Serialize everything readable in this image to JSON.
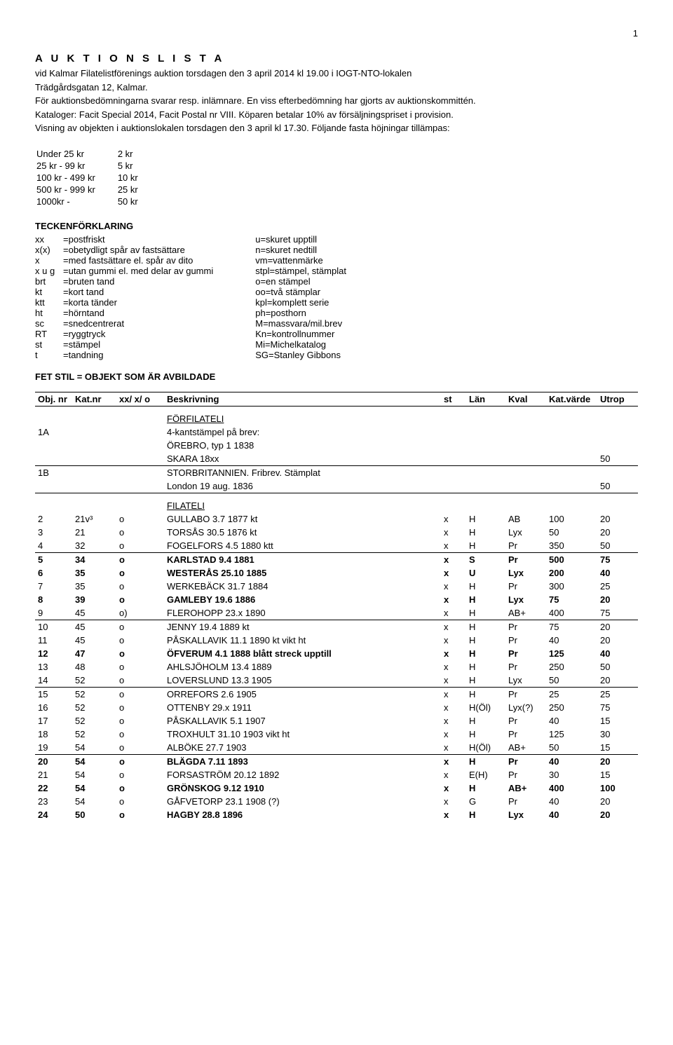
{
  "page_number": "1",
  "title": "A U K T I O N S L I S T A",
  "intro_lines": [
    "vid Kalmar Filatelistförenings auktion torsdagen den 3 april 2014 kl 19.00 i IOGT-NTO-lokalen",
    "Trädgårdsgatan 12, Kalmar.",
    "För auktionsbedömningarna svarar resp. inlämnare. En viss efterbedömning har gjorts av auktionskommittén.",
    "Kataloger: Facit Special 2014, Facit Postal nr VIII. Köparen betalar 10% av försäljningspriset i provision.",
    "Visning av objekten i auktionslokalen torsdagen den 3 april kl 17.30. Följande fasta höjningar tillämpas:"
  ],
  "increments": [
    {
      "range": "Under 25 kr",
      "step": "2 kr"
    },
    {
      "range": "25 kr - 99 kr",
      "step": "5 kr"
    },
    {
      "range": "100 kr - 499 kr",
      "step": "10 kr"
    },
    {
      "range": "500 kr - 999 kr",
      "step": "25 kr"
    },
    {
      "range": "1000kr -",
      "step": "50 kr"
    }
  ],
  "tecken_title": "TECKENFÖRKLARING",
  "tecken_left": [
    {
      "k": "xx",
      "v": "=postfriskt"
    },
    {
      "k": "x(x)",
      "v": "=obetydligt spår av fastsättare"
    },
    {
      "k": "x",
      "v": "=med fastsättare el. spår av dito"
    },
    {
      "k": "x u g",
      "v": "=utan gummi el. med delar av gummi"
    },
    {
      "k": "brt",
      "v": "=bruten tand"
    },
    {
      "k": "kt",
      "v": "=kort tand"
    },
    {
      "k": "ktt",
      "v": "=korta tänder"
    },
    {
      "k": "ht",
      "v": "=hörntand"
    },
    {
      "k": "sc",
      "v": "=snedcentrerat"
    },
    {
      "k": "RT",
      "v": "=ryggtryck"
    },
    {
      "k": "st",
      "v": "=stämpel"
    },
    {
      "k": "t",
      "v": "=tandning"
    }
  ],
  "tecken_right": [
    "u=skuret upptill",
    "n=skuret nedtill",
    "vm=vattenmärke",
    "stpl=stämpel, stämplat",
    "o=en stämpel",
    "oo=två stämplar",
    "kpl=komplett serie",
    "ph=posthorn",
    "M=massvara/mil.brev",
    "Kn=kontrollnummer",
    "Mi=Michelkatalog",
    "SG=Stanley Gibbons"
  ],
  "fet_line": "FET STIL = OBJEKT SOM ÄR AVBILDADE",
  "headers": {
    "obj": "Obj. nr",
    "kat": "Kat.nr",
    "xxo": "xx/ x/ o",
    "besk": "Beskrivning",
    "st": "st",
    "lan": "Län",
    "kval": "Kval",
    "katv": "Kat.värde",
    "utrop": "Utrop"
  },
  "section_forfilateli": "FÖRFILATELI",
  "lot1a_obj": "1A",
  "lot1a_l1": "4-kantstämpel på brev:",
  "lot1a_l2": "ÖREBRO, typ 1  1838",
  "lot1a_l3": "SKARA            18xx",
  "lot1a_utrop": "50",
  "lot1b_obj": "1B",
  "lot1b_l1": "STORBRITANNIEN. Fribrev. Stämplat",
  "lot1b_l2": "London 19 aug. 1836",
  "lot1b_utrop": "50",
  "section_filateli": "FILATELI",
  "lots": [
    {
      "o": "2",
      "k": "21v³",
      "x": "o",
      "b": "GULLABO  3.7  1877    kt",
      "st": "x",
      "ln": "H",
      "kv": "AB",
      "kat": "100",
      "u": "20",
      "bold": false,
      "ul": false
    },
    {
      "o": "3",
      "k": "21",
      "x": "o",
      "b": "TORSÅS  30.5  1876    kt",
      "st": "x",
      "ln": "H",
      "kv": "Lyx",
      "kat": "50",
      "u": "20",
      "bold": false,
      "ul": false
    },
    {
      "o": "4",
      "k": "32",
      "x": "o",
      "b": "FOGELFORS  4.5  1880   ktt",
      "st": "x",
      "ln": "H",
      "kv": "Pr",
      "kat": "350",
      "u": "50",
      "bold": false,
      "ul": true
    },
    {
      "o": "5",
      "k": "34",
      "x": "o",
      "b": "KARLSTAD  9.4  1881",
      "st": "x",
      "ln": "S",
      "kv": "Pr",
      "kat": "500",
      "u": "75",
      "bold": true,
      "ul": false
    },
    {
      "o": "6",
      "k": "35",
      "x": "o",
      "b": "WESTERÅS  25.10  1885",
      "st": "x",
      "ln": "U",
      "kv": "Lyx",
      "kat": "200",
      "u": "40",
      "bold": true,
      "ul": false
    },
    {
      "o": "7",
      "k": "35",
      "x": "o",
      "b": "WERKEBÄCK  31.7  1884",
      "st": "x",
      "ln": "H",
      "kv": "Pr",
      "kat": "300",
      "u": "25",
      "bold": false,
      "ul": false
    },
    {
      "o": "8",
      "k": "39",
      "x": "o",
      "b": "GAMLEBY  19.6  1886",
      "st": "x",
      "ln": "H",
      "kv": "Lyx",
      "kat": "75",
      "u": "20",
      "bold": true,
      "ul": false
    },
    {
      "o": "9",
      "k": "45",
      "x": "o)",
      "b": "FLEROHOPP  23.x  1890",
      "st": "x",
      "ln": "H",
      "kv": "AB+",
      "kat": "400",
      "u": "75",
      "bold": false,
      "ul": true
    },
    {
      "o": "10",
      "k": "45",
      "x": "o",
      "b": "JENNY  19.4  1889      kt",
      "st": "x",
      "ln": "H",
      "kv": "Pr",
      "kat": "75",
      "u": "20",
      "bold": false,
      "ul": false
    },
    {
      "o": "11",
      "k": "45",
      "x": "o",
      "b": "PÅSKALLAVIK  11.1  1890  kt  vikt ht",
      "st": "x",
      "ln": "H",
      "kv": "Pr",
      "kat": "40",
      "u": "20",
      "bold": false,
      "ul": false
    },
    {
      "o": "12",
      "k": "47",
      "x": "o",
      "b": "ÖFVERUM  4.1  1888  blått streck upptill",
      "st": "x",
      "ln": "H",
      "kv": "Pr",
      "kat": "125",
      "u": "40",
      "bold": true,
      "ul": false
    },
    {
      "o": "13",
      "k": "48",
      "x": "o",
      "b": "AHLSJÖHOLM  13.4  1889",
      "st": "x",
      "ln": "H",
      "kv": "Pr",
      "kat": "250",
      "u": "50",
      "bold": false,
      "ul": false
    },
    {
      "o": "14",
      "k": "52",
      "x": "o",
      "b": "LOVERSLUND  13.3  1905",
      "st": "x",
      "ln": "H",
      "kv": "Lyx",
      "kat": "50",
      "u": "20",
      "bold": false,
      "ul": true
    },
    {
      "o": "15",
      "k": "52",
      "x": "o",
      "b": "ORREFORS  2.6  1905",
      "st": "x",
      "ln": "H",
      "kv": "Pr",
      "kat": "25",
      "u": "25",
      "bold": false,
      "ul": false
    },
    {
      "o": "16",
      "k": "52",
      "x": "o",
      "b": "OTTENBY  29.x  1911",
      "st": "x",
      "ln": "H(Öl)",
      "kv": "Lyx(?)",
      "kat": "250",
      "u": "75",
      "bold": false,
      "ul": false
    },
    {
      "o": "17",
      "k": "52",
      "x": "o",
      "b": "PÅSKALLAVIK  5.1  1907",
      "st": "x",
      "ln": "H",
      "kv": "Pr",
      "kat": "40",
      "u": "15",
      "bold": false,
      "ul": false
    },
    {
      "o": "18",
      "k": "52",
      "x": "o",
      "b": "TROXHULT  31.10  1903    vikt ht",
      "st": "x",
      "ln": "H",
      "kv": "Pr",
      "kat": "125",
      "u": "30",
      "bold": false,
      "ul": false
    },
    {
      "o": "19",
      "k": "54",
      "x": "o",
      "b": "ALBÖKE  27.7  1903",
      "st": "x",
      "ln": "H(Öl)",
      "kv": "AB+",
      "kat": "50",
      "u": "15",
      "bold": false,
      "ul": true
    },
    {
      "o": "20",
      "k": "54",
      "x": "o",
      "b": "BLÄGDA  7.11  1893",
      "st": "x",
      "ln": "H",
      "kv": "Pr",
      "kat": "40",
      "u": "20",
      "bold": true,
      "ul": false
    },
    {
      "o": "21",
      "k": "54",
      "x": "o",
      "b": "FORSASTRÖM  20.12  1892",
      "st": "x",
      "ln": "E(H)",
      "kv": "Pr",
      "kat": "30",
      "u": "15",
      "bold": false,
      "ul": false
    },
    {
      "o": "22",
      "k": "54",
      "x": "o",
      "b": "GRÖNSKOG  9.12  1910",
      "st": "x",
      "ln": "H",
      "kv": "AB+",
      "kat": "400",
      "u": "100",
      "bold": true,
      "ul": false
    },
    {
      "o": "23",
      "k": "54",
      "x": "o",
      "b": "GÅFVETORP  23.1  1908 (?)",
      "st": "x",
      "ln": "G",
      "kv": "Pr",
      "kat": "40",
      "u": "20",
      "bold": false,
      "ul": false
    },
    {
      "o": "24",
      "k": "50",
      "x": "o",
      "b": "HAGBY  28.8  1896",
      "st": "x",
      "ln": "H",
      "kv": "Lyx",
      "kat": "40",
      "u": "20",
      "bold": true,
      "ul": false
    }
  ]
}
